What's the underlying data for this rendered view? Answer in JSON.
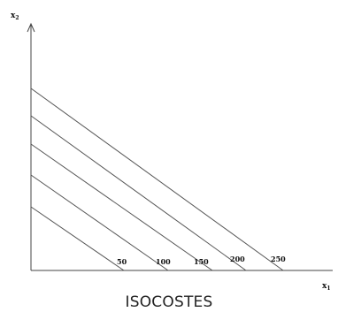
{
  "axes": {
    "y_label": "x",
    "y_label_sub": "2",
    "x_label": "x",
    "x_label_sub": "1"
  },
  "isocost_lines": [
    {
      "label": "50"
    },
    {
      "label": "100"
    },
    {
      "label": "150"
    },
    {
      "label": "200"
    },
    {
      "label": "250"
    }
  ],
  "caption": "ISOCOSTES",
  "colors": {
    "line": "#555555",
    "axis": "#444444",
    "text": "#111111"
  }
}
